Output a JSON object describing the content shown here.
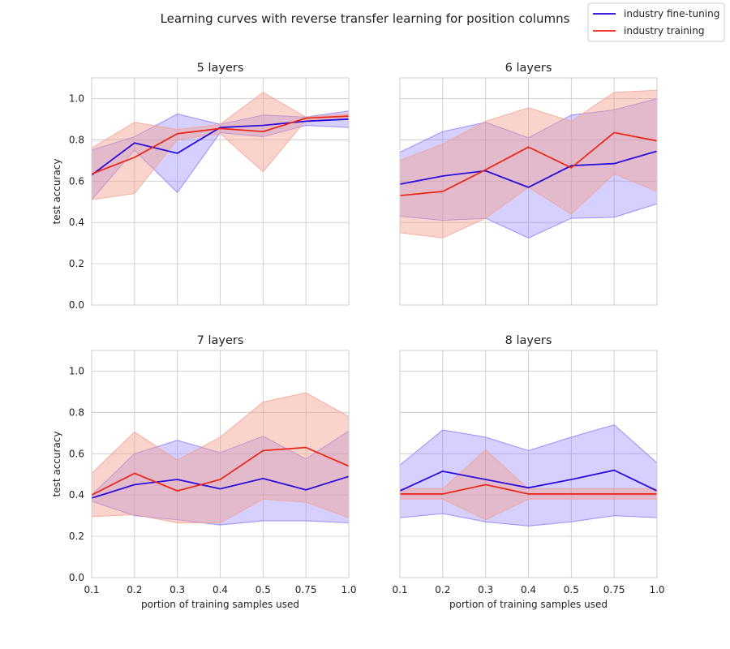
{
  "figure": {
    "suptitle": "Learning curves with reverse transfer learning for position columns"
  },
  "legend": {
    "placement": "top-right",
    "items": [
      {
        "label": "industry fine-tuning",
        "color": "#2200dd"
      },
      {
        "label": "industry training",
        "color": "#ee2211"
      }
    ]
  },
  "colors": {
    "fine_tuning_line": "#2200dd",
    "fine_tuning_band": "#8877ff",
    "training_line": "#ee2211",
    "training_band": "#f4a08f",
    "grid": "#cccccc"
  },
  "chart_data": [
    {
      "type": "line",
      "title": "5 layers",
      "xlabel": "",
      "ylabel": "test accuracy",
      "categories": [
        "0.1",
        "0.2",
        "0.3",
        "0.4",
        "0.5",
        "0.75",
        "1.0"
      ],
      "ylim": [
        0,
        1.1
      ],
      "yticks": [
        "0.0",
        "0.2",
        "0.4",
        "0.6",
        "0.8",
        "1.0"
      ],
      "grid": true,
      "series": [
        {
          "name": "industry fine-tuning",
          "values": [
            0.63,
            0.785,
            0.735,
            0.86,
            0.87,
            0.89,
            0.9
          ],
          "lower": [
            0.51,
            0.75,
            0.545,
            0.835,
            0.815,
            0.87,
            0.86
          ],
          "upper": [
            0.75,
            0.815,
            0.925,
            0.875,
            0.92,
            0.91,
            0.94
          ]
        },
        {
          "name": "industry training",
          "values": [
            0.635,
            0.715,
            0.83,
            0.855,
            0.84,
            0.905,
            0.915
          ],
          "lower": [
            0.51,
            0.54,
            0.8,
            0.83,
            0.645,
            0.895,
            0.9
          ],
          "upper": [
            0.76,
            0.885,
            0.85,
            0.875,
            1.03,
            0.91,
            0.925
          ]
        }
      ]
    },
    {
      "type": "line",
      "title": "6 layers",
      "xlabel": "",
      "ylabel": "",
      "categories": [
        "0.1",
        "0.2",
        "0.3",
        "0.4",
        "0.5",
        "0.75",
        "1.0"
      ],
      "ylim": [
        0,
        1.1
      ],
      "yticks": [],
      "grid": true,
      "series": [
        {
          "name": "industry fine-tuning",
          "values": [
            0.585,
            0.625,
            0.65,
            0.57,
            0.675,
            0.685,
            0.745
          ],
          "lower": [
            0.43,
            0.41,
            0.42,
            0.325,
            0.42,
            0.425,
            0.49
          ],
          "upper": [
            0.74,
            0.84,
            0.885,
            0.81,
            0.92,
            0.945,
            1.0
          ]
        },
        {
          "name": "industry training",
          "values": [
            0.53,
            0.55,
            0.655,
            0.765,
            0.665,
            0.835,
            0.795
          ],
          "lower": [
            0.35,
            0.325,
            0.42,
            0.57,
            0.44,
            0.635,
            0.55
          ],
          "upper": [
            0.7,
            0.78,
            0.89,
            0.955,
            0.89,
            1.03,
            1.04
          ]
        }
      ]
    },
    {
      "type": "line",
      "title": "7 layers",
      "xlabel": "portion of training samples used",
      "ylabel": "test accuracy",
      "categories": [
        "0.1",
        "0.2",
        "0.3",
        "0.4",
        "0.5",
        "0.75",
        "1.0"
      ],
      "ylim": [
        0,
        1.1
      ],
      "yticks": [
        "0.0",
        "0.2",
        "0.4",
        "0.6",
        "0.8",
        "1.0"
      ],
      "grid": true,
      "series": [
        {
          "name": "industry fine-tuning",
          "values": [
            0.385,
            0.45,
            0.475,
            0.43,
            0.48,
            0.425,
            0.49
          ],
          "lower": [
            0.37,
            0.3,
            0.28,
            0.255,
            0.275,
            0.275,
            0.265
          ],
          "upper": [
            0.4,
            0.6,
            0.665,
            0.605,
            0.685,
            0.575,
            0.71
          ]
        },
        {
          "name": "industry training",
          "values": [
            0.4,
            0.505,
            0.42,
            0.475,
            0.615,
            0.63,
            0.54
          ],
          "lower": [
            0.295,
            0.305,
            0.265,
            0.265,
            0.38,
            0.365,
            0.29
          ],
          "upper": [
            0.505,
            0.705,
            0.57,
            0.68,
            0.85,
            0.895,
            0.78
          ]
        }
      ]
    },
    {
      "type": "line",
      "title": "8 layers",
      "xlabel": "portion of training samples used",
      "ylabel": "",
      "categories": [
        "0.1",
        "0.2",
        "0.3",
        "0.4",
        "0.5",
        "0.75",
        "1.0"
      ],
      "ylim": [
        0,
        1.1
      ],
      "yticks": [],
      "grid": true,
      "series": [
        {
          "name": "industry fine-tuning",
          "values": [
            0.42,
            0.515,
            0.475,
            0.435,
            0.475,
            0.52,
            0.42
          ],
          "lower": [
            0.29,
            0.31,
            0.27,
            0.25,
            0.27,
            0.3,
            0.29
          ],
          "upper": [
            0.545,
            0.715,
            0.68,
            0.615,
            0.68,
            0.74,
            0.555
          ]
        },
        {
          "name": "industry training",
          "values": [
            0.405,
            0.405,
            0.45,
            0.405,
            0.405,
            0.405,
            0.405
          ],
          "lower": [
            0.38,
            0.38,
            0.28,
            0.38,
            0.38,
            0.38,
            0.38
          ],
          "upper": [
            0.43,
            0.43,
            0.62,
            0.43,
            0.43,
            0.43,
            0.43
          ]
        }
      ]
    }
  ]
}
